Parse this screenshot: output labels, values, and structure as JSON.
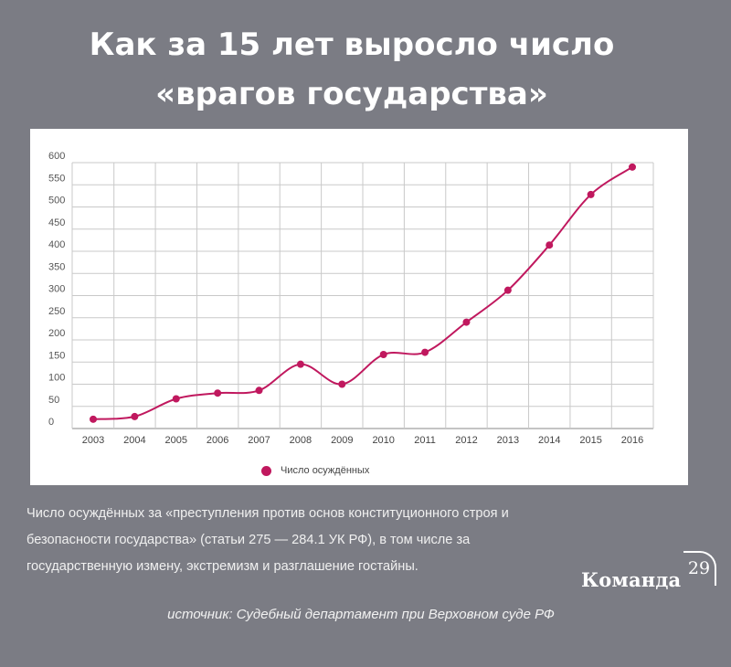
{
  "header": {
    "title_line1": "Как за 15 лет выросло число",
    "title_line2": "«врагов государства»"
  },
  "chart_data": {
    "type": "line",
    "categories": [
      "2003",
      "2004",
      "2005",
      "2006",
      "2007",
      "2008",
      "2009",
      "2010",
      "2011",
      "2012",
      "2013",
      "2014",
      "2015",
      "2016"
    ],
    "series": [
      {
        "name": "Число осуждённых",
        "values": [
          21,
          27,
          67,
          80,
          86,
          145,
          100,
          167,
          172,
          240,
          312,
          414,
          528,
          590
        ],
        "color": "#c0185e"
      }
    ],
    "yticks": [
      "0",
      "50",
      "100",
      "150",
      "200",
      "250",
      "300",
      "350",
      "400",
      "450",
      "500",
      "550",
      "600"
    ],
    "ylim": [
      0,
      600
    ],
    "grid": true,
    "legend_position": "bottom"
  },
  "legend": {
    "label": "Число осуждённых"
  },
  "caption": {
    "line1": "Число осуждённых за «преступления против основ конституционного строя и",
    "line2": "безопасности государства» (статьи 275 — 284.1 УК РФ), в том числе за",
    "line3": "государственную измену, экстремизм и разглашение гостайны."
  },
  "brand": {
    "name": "Команда",
    "number": "29"
  },
  "source": {
    "text": "источник: Судебный департамент при Верховном суде РФ"
  }
}
